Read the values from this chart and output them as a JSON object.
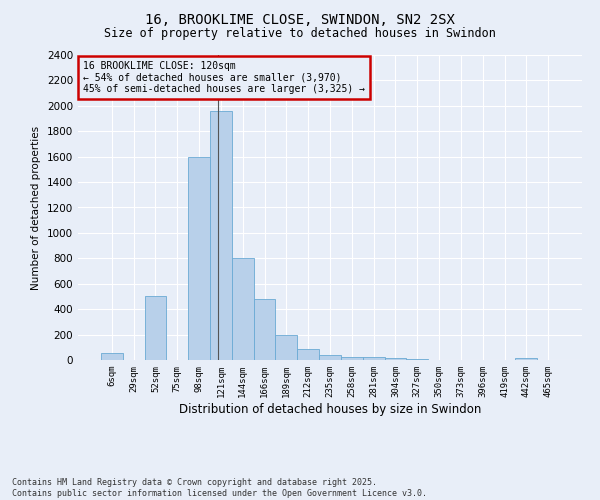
{
  "title_line1": "16, BROOKLIME CLOSE, SWINDON, SN2 2SX",
  "title_line2": "Size of property relative to detached houses in Swindon",
  "xlabel": "Distribution of detached houses by size in Swindon",
  "ylabel": "Number of detached properties",
  "categories": [
    "6sqm",
    "29sqm",
    "52sqm",
    "75sqm",
    "98sqm",
    "121sqm",
    "144sqm",
    "166sqm",
    "189sqm",
    "212sqm",
    "235sqm",
    "258sqm",
    "281sqm",
    "304sqm",
    "327sqm",
    "350sqm",
    "373sqm",
    "396sqm",
    "419sqm",
    "442sqm",
    "465sqm"
  ],
  "values": [
    55,
    0,
    500,
    0,
    1600,
    1960,
    800,
    480,
    195,
    85,
    40,
    25,
    20,
    12,
    8,
    3,
    0,
    0,
    0,
    15,
    0
  ],
  "bar_color": "#b8d0ea",
  "bar_edge_color": "#6aaad4",
  "annotation_box_line1": "16 BROOKLIME CLOSE: 120sqm",
  "annotation_box_line2": "← 54% of detached houses are smaller (3,970)",
  "annotation_box_line3": "45% of semi-detached houses are larger (3,325) →",
  "annotation_box_color": "#cc0000",
  "vline_x_index": 4.85,
  "ylim": [
    0,
    2400
  ],
  "yticks": [
    0,
    200,
    400,
    600,
    800,
    1000,
    1200,
    1400,
    1600,
    1800,
    2000,
    2200,
    2400
  ],
  "background_color": "#e8eef8",
  "grid_color": "#ffffff",
  "footer_line1": "Contains HM Land Registry data © Crown copyright and database right 2025.",
  "footer_line2": "Contains public sector information licensed under the Open Government Licence v3.0."
}
